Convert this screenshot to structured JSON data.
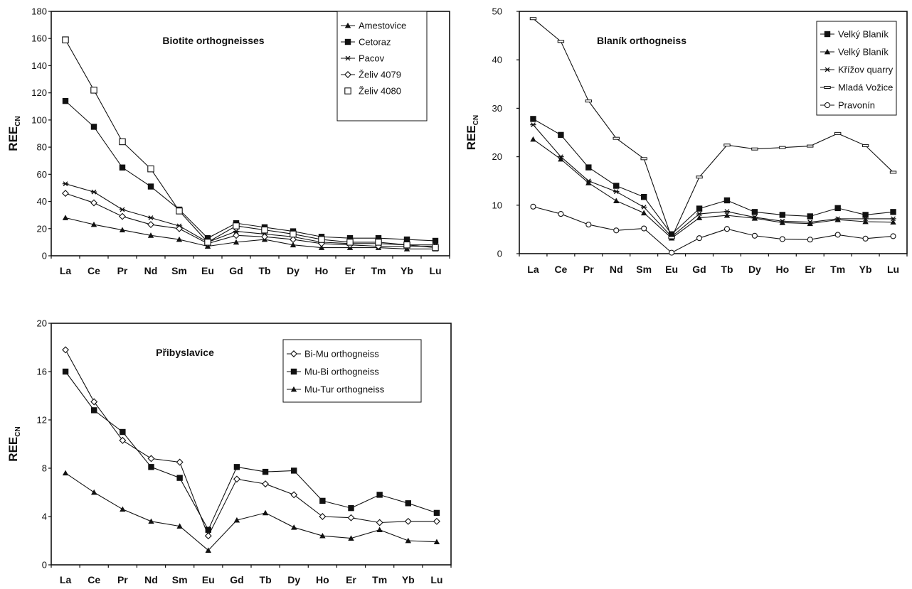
{
  "chart_data": [
    {
      "type": "line",
      "title": "Biotite orthogneisses",
      "ylabel": "REE",
      "ylabel_sub": "CN",
      "xlabel": "",
      "ylim": [
        0,
        180
      ],
      "yticks": [
        0,
        20,
        40,
        60,
        80,
        100,
        120,
        140,
        160,
        180
      ],
      "categories": [
        "La",
        "Ce",
        "Pr",
        "Nd",
        "Sm",
        "Eu",
        "Gd",
        "Tb",
        "Dy",
        "Ho",
        "Er",
        "Tm",
        "Yb",
        "Lu"
      ],
      "legend_position": "top-right",
      "series": [
        {
          "name": "Amestovice",
          "marker": "triangle",
          "values": [
            28,
            23,
            19,
            15,
            12,
            7,
            10,
            12,
            8,
            6,
            6,
            6,
            5,
            5
          ]
        },
        {
          "name": "Cetoraz",
          "marker": "square-filled",
          "values": [
            114,
            95,
            65,
            51,
            34,
            13,
            24,
            21,
            18,
            14,
            13,
            13,
            12,
            11
          ]
        },
        {
          "name": "Pacov",
          "marker": "star",
          "values": [
            53,
            47,
            34,
            28,
            22,
            10,
            18,
            16,
            14,
            10,
            9,
            9,
            8,
            8
          ]
        },
        {
          "name": "Želiv 4079",
          "marker": "diamond-open",
          "values": [
            46,
            39,
            29,
            23,
            20,
            9,
            15,
            14,
            12,
            9,
            8,
            7,
            7,
            7
          ]
        },
        {
          "name": "Želiv 4080",
          "marker": "square-open",
          "values": [
            159,
            122,
            84,
            64,
            33,
            10,
            22,
            19,
            16,
            12,
            10,
            10,
            8,
            6
          ]
        }
      ]
    },
    {
      "type": "line",
      "title": "Blaník orthogneiss",
      "ylabel": "REE",
      "ylabel_sub": "CN",
      "xlabel": "",
      "ylim": [
        0,
        50
      ],
      "yticks": [
        0,
        10,
        20,
        30,
        40,
        50
      ],
      "categories": [
        "La",
        "Ce",
        "Pr",
        "Nd",
        "Sm",
        "Eu",
        "Gd",
        "Tb",
        "Dy",
        "Ho",
        "Er",
        "Tm",
        "Yb",
        "Lu"
      ],
      "legend_position": "top-right",
      "series": [
        {
          "name": "Velký Blaník",
          "marker": "square-filled",
          "values": [
            27.8,
            24.5,
            17.8,
            14,
            11.7,
            4,
            9.3,
            11,
            8.6,
            8,
            7.7,
            9.4,
            8,
            8.6
          ]
        },
        {
          "name": "Velký Blaník",
          "marker": "triangle",
          "values": [
            23.6,
            19.5,
            14.6,
            10.9,
            8.4,
            3.2,
            7.4,
            7.9,
            7.3,
            6.4,
            6.2,
            7,
            6.6,
            6.5
          ]
        },
        {
          "name": "Křížov quarry",
          "marker": "star",
          "values": [
            26.6,
            20,
            15,
            12.8,
            9.6,
            3.5,
            8.2,
            8.7,
            7.5,
            6.7,
            6.5,
            7.2,
            7.2,
            7.2
          ]
        },
        {
          "name": "Mladá Vožice",
          "marker": "dash",
          "values": [
            48.5,
            43.8,
            31.5,
            23.8,
            19.6,
            3.3,
            15.8,
            22.4,
            21.6,
            21.9,
            22.2,
            24.8,
            22.3,
            16.8
          ]
        },
        {
          "name": "Pravonín",
          "marker": "circle-open",
          "values": [
            9.7,
            8.2,
            6,
            4.8,
            5.2,
            0.2,
            3.2,
            5.1,
            3.7,
            3,
            2.9,
            3.9,
            3.1,
            3.6
          ]
        }
      ]
    },
    {
      "type": "line",
      "title": "Přibyslavice",
      "ylabel": "REE",
      "ylabel_sub": "CN",
      "xlabel": "",
      "ylim": [
        0,
        20
      ],
      "yticks": [
        0,
        4,
        8,
        12,
        16,
        20
      ],
      "categories": [
        "La",
        "Ce",
        "Pr",
        "Nd",
        "Sm",
        "Eu",
        "Gd",
        "Tb",
        "Dy",
        "Ho",
        "Er",
        "Tm",
        "Yb",
        "Lu"
      ],
      "legend_position": "top-right",
      "series": [
        {
          "name": "Bi-Mu orthogneiss",
          "marker": "diamond-open",
          "values": [
            17.8,
            13.5,
            10.3,
            8.8,
            8.5,
            2.4,
            7.1,
            6.7,
            5.8,
            4.0,
            3.9,
            3.5,
            3.6,
            3.6
          ]
        },
        {
          "name": "Mu-Bi orthogneiss",
          "marker": "square-filled",
          "values": [
            16,
            12.8,
            11,
            8.1,
            7.2,
            2.9,
            8.1,
            7.7,
            7.8,
            5.3,
            4.7,
            5.8,
            5.1,
            4.3
          ]
        },
        {
          "name": "Mu-Tur orthogneiss",
          "marker": "triangle",
          "values": [
            7.6,
            6,
            4.6,
            3.6,
            3.2,
            1.2,
            3.7,
            4.3,
            3.1,
            2.4,
            2.2,
            2.9,
            2.0,
            1.9
          ]
        }
      ]
    }
  ]
}
